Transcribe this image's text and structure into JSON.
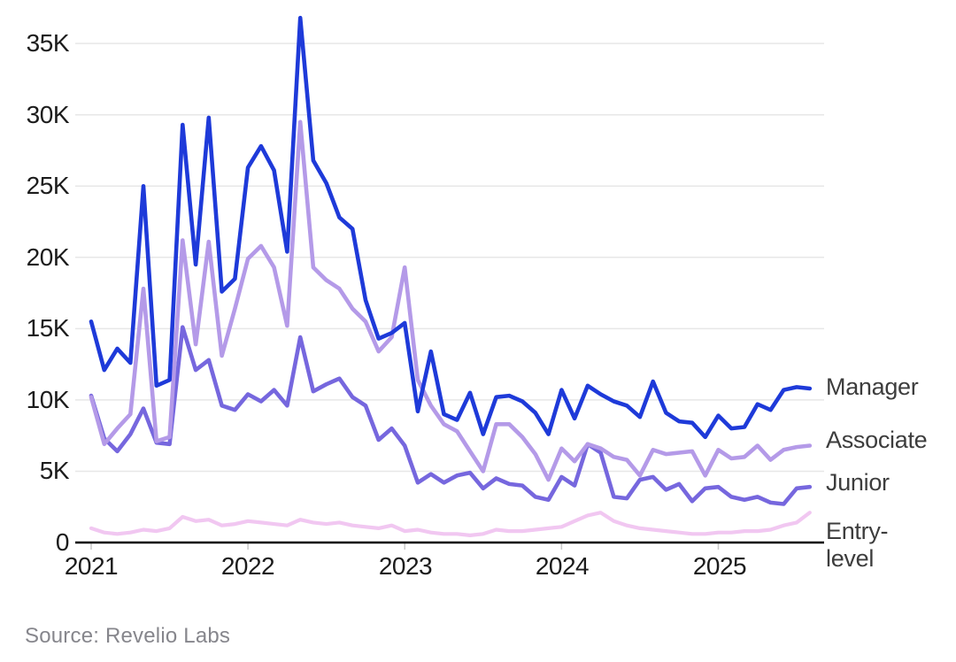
{
  "chart_data": {
    "type": "line",
    "title": "",
    "x_unit": "month",
    "x_start": "2021-01",
    "x_end": "2025-08",
    "points_per_series": 56,
    "x_tick_labels": [
      "2021",
      "2022",
      "2023",
      "2024",
      "2025"
    ],
    "y_tick_labels": [
      "0",
      "5K",
      "10K",
      "15K",
      "20K",
      "25K",
      "30K",
      "35K"
    ],
    "y_unit": "thousands",
    "ylim": [
      0,
      38000
    ],
    "grid": "horizontal",
    "legend_position": "right-end-of-line-labels",
    "series": [
      {
        "name": "Manager",
        "color": "#1e3ad9",
        "values": [
          15.5,
          12.1,
          13.6,
          12.6,
          25.0,
          11.0,
          11.4,
          29.3,
          19.5,
          29.8,
          17.6,
          18.5,
          26.3,
          27.8,
          26.1,
          20.4,
          36.8,
          26.8,
          25.2,
          22.8,
          22.0,
          17.0,
          14.3,
          14.7,
          15.4,
          9.2,
          13.4,
          9.0,
          8.6,
          10.5,
          7.6,
          10.2,
          10.3,
          9.9,
          9.1,
          7.6,
          10.7,
          8.7,
          11.0,
          10.4,
          9.9,
          9.6,
          8.8,
          11.3,
          9.1,
          8.5,
          8.4,
          7.4,
          8.9,
          8.0,
          8.1,
          9.7,
          9.3,
          10.7,
          10.9,
          10.8
        ]
      },
      {
        "name": "Associate",
        "color": "#b49ae8",
        "values": [
          10.2,
          6.9,
          8.0,
          9.0,
          17.8,
          7.1,
          7.4,
          21.2,
          13.9,
          21.1,
          13.1,
          16.4,
          19.9,
          20.8,
          19.3,
          15.2,
          29.5,
          19.3,
          18.4,
          17.8,
          16.4,
          15.5,
          13.4,
          14.4,
          19.3,
          11.4,
          9.6,
          8.3,
          7.8,
          6.4,
          5.0,
          8.3,
          8.3,
          7.4,
          6.2,
          4.4,
          6.6,
          5.7,
          6.9,
          6.6,
          6.0,
          5.8,
          4.7,
          6.5,
          6.2,
          6.3,
          6.4,
          4.7,
          6.5,
          5.9,
          6.0,
          6.8,
          5.8,
          6.5,
          6.7,
          6.8
        ]
      },
      {
        "name": "Junior",
        "color": "#7667de",
        "values": [
          10.3,
          7.3,
          6.4,
          7.6,
          9.4,
          7.0,
          6.9,
          15.1,
          12.1,
          12.8,
          9.6,
          9.3,
          10.4,
          9.9,
          10.7,
          9.6,
          14.4,
          10.6,
          11.1,
          11.5,
          10.2,
          9.6,
          7.2,
          8.0,
          6.8,
          4.2,
          4.8,
          4.2,
          4.7,
          4.9,
          3.8,
          4.5,
          4.1,
          4.0,
          3.2,
          3.0,
          4.6,
          4.0,
          6.9,
          6.3,
          3.2,
          3.1,
          4.4,
          4.6,
          3.7,
          4.1,
          2.9,
          3.8,
          3.9,
          3.2,
          3.0,
          3.2,
          2.8,
          2.7,
          3.8,
          3.9
        ]
      },
      {
        "name": "Entry-level",
        "color": "#f1c7f1",
        "values": [
          1.0,
          0.7,
          0.6,
          0.7,
          0.9,
          0.8,
          1.0,
          1.8,
          1.5,
          1.6,
          1.2,
          1.3,
          1.5,
          1.4,
          1.3,
          1.2,
          1.6,
          1.4,
          1.3,
          1.4,
          1.2,
          1.1,
          1.0,
          1.2,
          0.8,
          0.9,
          0.7,
          0.6,
          0.6,
          0.5,
          0.6,
          0.9,
          0.8,
          0.8,
          0.9,
          1.0,
          1.1,
          1.5,
          1.9,
          2.1,
          1.5,
          1.2,
          1.0,
          0.9,
          0.8,
          0.7,
          0.6,
          0.6,
          0.7,
          0.7,
          0.8,
          0.8,
          0.9,
          1.2,
          1.4,
          2.1
        ]
      }
    ]
  },
  "labels": {
    "manager": "Manager",
    "associate": "Associate",
    "junior": "Junior",
    "entry_line1": "Entry-",
    "entry_line2": "level"
  },
  "source": "Source: Revelio Labs",
  "colors": {
    "manager": "#1e3ad9",
    "associate": "#b49ae8",
    "junior": "#7667de",
    "entry_level": "#f1c7f1",
    "gridline": "#e7e7e7",
    "axis": "#000000",
    "tick": "#c9c9c9",
    "axis_text": "#1c1c1c",
    "label_text": "#3d3d3d",
    "source_text": "#86868c"
  }
}
